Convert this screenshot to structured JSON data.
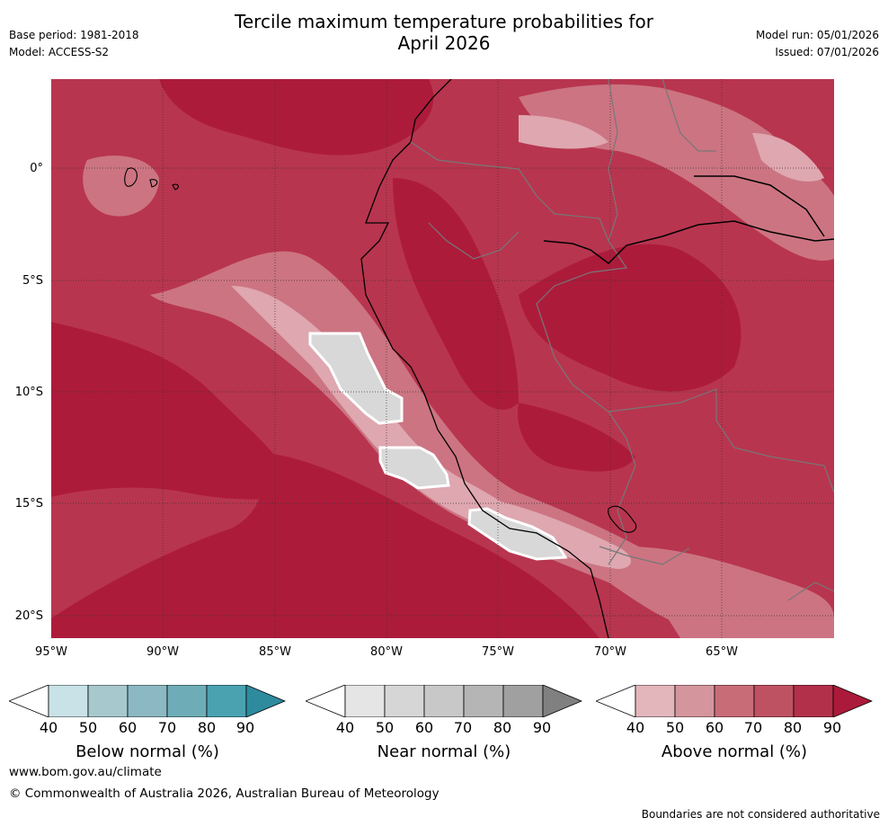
{
  "title": {
    "line1": "Tercile maximum temperature probabilities for",
    "line2": "April 2026"
  },
  "meta_left": {
    "base_period": "Base period: 1981-2018",
    "model": "Model: ACCESS-S2"
  },
  "meta_right": {
    "model_run": "Model run: 05/01/2026",
    "issued": "Issued: 07/01/2026"
  },
  "map": {
    "lat_labels": [
      "0°",
      "5°S",
      "10°S",
      "15°S",
      "20°S"
    ],
    "lon_labels": [
      "95°W",
      "90°W",
      "85°W",
      "80°W",
      "75°W",
      "70°W",
      "65°W"
    ]
  },
  "legends": [
    {
      "title": "Below normal (%)",
      "ticks": [
        "40",
        "50",
        "60",
        "70",
        "80",
        "90"
      ],
      "colors": [
        "#ffffff",
        "#c9e2e7",
        "#a7c8cd",
        "#8bb8c3",
        "#6eadb8",
        "#4aa2b1",
        "#2e8b9e"
      ]
    },
    {
      "title": "Near normal (%)",
      "ticks": [
        "40",
        "50",
        "60",
        "70",
        "80",
        "90"
      ],
      "colors": [
        "#ffffff",
        "#e5e5e5",
        "#d6d6d6",
        "#c8c8c8",
        "#b5b5b5",
        "#a0a0a0",
        "#808080"
      ]
    },
    {
      "title": "Above normal (%)",
      "ticks": [
        "40",
        "50",
        "60",
        "70",
        "80",
        "90"
      ],
      "colors": [
        "#ffffff",
        "#e3b6bc",
        "#d4959d",
        "#c86c78",
        "#bf5262",
        "#b3304a",
        "#ab1a3a"
      ]
    }
  ],
  "footer": {
    "website": "www.bom.gov.au/climate",
    "copyright": "© Commonwealth of Australia 2026, Australian Bureau of Meteorology",
    "disclaimer": "Boundaries are not considered authoritative"
  }
}
